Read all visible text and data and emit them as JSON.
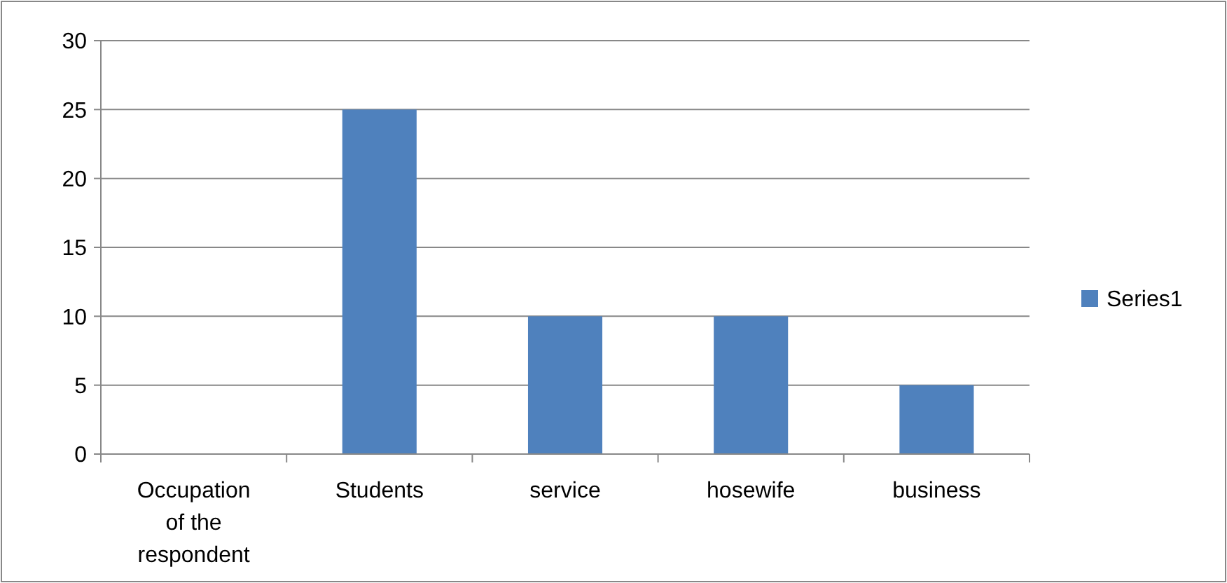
{
  "chart_data": {
    "type": "bar",
    "categories": [
      "Occupation of the respondent",
      "Students",
      "service",
      "hosewife",
      "business"
    ],
    "series": [
      {
        "name": "Series1",
        "color": "#4f81bd",
        "values": [
          0,
          25,
          10,
          10,
          5
        ]
      }
    ],
    "ylim": [
      0,
      30
    ],
    "yticks": [
      0,
      5,
      10,
      15,
      20,
      25,
      30
    ],
    "grid": "y",
    "legend": "right"
  }
}
